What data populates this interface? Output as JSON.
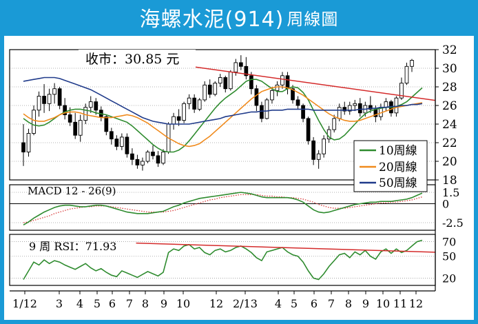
{
  "header": {
    "title_main": "海螺水泥(914)",
    "title_suffix": "周線圖",
    "bg_color": "#1a9ad6"
  },
  "chart_data": [
    {
      "type": "candlestick",
      "price_label": "收市：30.85 元",
      "last_close": 30.85,
      "ylim": [
        18,
        32
      ],
      "y_ticks": [
        18,
        20,
        22,
        24,
        26,
        28,
        30,
        32
      ],
      "x_tick_labels": [
        "1/12",
        "3",
        "4",
        "5",
        "6",
        "7",
        "8",
        "9",
        "10",
        "12",
        "2/13",
        "4",
        "5",
        "6",
        "7",
        "8",
        "9",
        "10",
        "11",
        "12"
      ],
      "grid": true,
      "legend_placement": "bottom-right",
      "candle_color": "#000000",
      "candles": [
        [
          22,
          24,
          19.5,
          21
        ],
        [
          21,
          23.5,
          20.5,
          23
        ],
        [
          23,
          26,
          22.8,
          25.5
        ],
        [
          25.5,
          27.5,
          24.8,
          27
        ],
        [
          27,
          28.3,
          25.2,
          26.2
        ],
        [
          26.2,
          27.8,
          25.4,
          27.2
        ],
        [
          27.2,
          28.4,
          26.2,
          27.8
        ],
        [
          27.8,
          28,
          25.6,
          26
        ],
        [
          26,
          26.8,
          24.5,
          25
        ],
        [
          25,
          25.8,
          23.8,
          24.2
        ],
        [
          24.2,
          25.2,
          22.4,
          22.8
        ],
        [
          22.8,
          25,
          22.1,
          24.4
        ],
        [
          24.4,
          26.2,
          24,
          25.8
        ],
        [
          25.8,
          27,
          25.2,
          26.4
        ],
        [
          26.4,
          26.8,
          25,
          25.5
        ],
        [
          25.5,
          25.9,
          24.3,
          24.8
        ],
        [
          24.8,
          25,
          22.8,
          23.2
        ],
        [
          23.2,
          23.6,
          21.8,
          22.4
        ],
        [
          22.4,
          22.8,
          21.2,
          21.6
        ],
        [
          21.6,
          23,
          21.2,
          22.6
        ],
        [
          22.6,
          23,
          20.4,
          20.8
        ],
        [
          20.8,
          21.4,
          19.6,
          20.2
        ],
        [
          20.2,
          20.7,
          19.2,
          19.6
        ],
        [
          19.6,
          20.4,
          19,
          20
        ],
        [
          20,
          21.2,
          19.8,
          21
        ],
        [
          21,
          21.7,
          20.2,
          20.6
        ],
        [
          20.6,
          21.1,
          19.4,
          19.8
        ],
        [
          19.8,
          21.3,
          19.6,
          21
        ],
        [
          21,
          24.2,
          20.8,
          24
        ],
        [
          24,
          25.2,
          23.4,
          24.8
        ],
        [
          24.8,
          25.6,
          23.8,
          24.4
        ],
        [
          24.4,
          26.4,
          24.1,
          26.2
        ],
        [
          26.2,
          27.2,
          25.6,
          26.8
        ],
        [
          26.8,
          27.2,
          25.2,
          25.6
        ],
        [
          25.6,
          26.8,
          25.4,
          26.6
        ],
        [
          26.6,
          28.6,
          26.4,
          28.2
        ],
        [
          28.2,
          28.8,
          26.8,
          27.2
        ],
        [
          27.2,
          28.6,
          27,
          28.4
        ],
        [
          28.4,
          29.4,
          28,
          29
        ],
        [
          29,
          29.2,
          27.4,
          27.8
        ],
        [
          27.8,
          29.8,
          27.6,
          29.6
        ],
        [
          29.6,
          31,
          29.2,
          30.6
        ],
        [
          30.6,
          31.4,
          29.8,
          30.2
        ],
        [
          30.2,
          31.2,
          28.8,
          29.2
        ],
        [
          29.2,
          29.6,
          27.2,
          27.8
        ],
        [
          27.8,
          28.2,
          25.4,
          26
        ],
        [
          26,
          26.4,
          24.2,
          24.6
        ],
        [
          24.6,
          26.8,
          24.5,
          26.6
        ],
        [
          26.6,
          28,
          26.2,
          27.6
        ],
        [
          27.6,
          28.6,
          27,
          28.2
        ],
        [
          28.2,
          29.6,
          27.8,
          29.2
        ],
        [
          29.2,
          29.6,
          27.2,
          27.8
        ],
        [
          27.8,
          28.2,
          26.2,
          26.6
        ],
        [
          26.6,
          27,
          25.6,
          26
        ],
        [
          26,
          26.2,
          24.2,
          24.6
        ],
        [
          24.6,
          24.8,
          21.8,
          22.2
        ],
        [
          22.2,
          22.6,
          19.6,
          20.2
        ],
        [
          20.2,
          21.2,
          19.2,
          20.8
        ],
        [
          20.8,
          22.8,
          20.4,
          22.4
        ],
        [
          22.4,
          23.8,
          22,
          23.4
        ],
        [
          23.4,
          25,
          23.1,
          24.6
        ],
        [
          24.6,
          26.2,
          24.3,
          25.8
        ],
        [
          25.8,
          26.4,
          25,
          25.4
        ],
        [
          25.4,
          26.4,
          25,
          26
        ],
        [
          26,
          26.6,
          25.4,
          26.2
        ],
        [
          26.2,
          26.8,
          24.8,
          25.2
        ],
        [
          25.2,
          26.4,
          24.8,
          26
        ],
        [
          26,
          27,
          25.2,
          25.6
        ],
        [
          25.6,
          26,
          24.2,
          24.8
        ],
        [
          24.8,
          26.2,
          24.4,
          25.8
        ],
        [
          25.8,
          26.8,
          25.4,
          26.4
        ],
        [
          26.4,
          26.6,
          24.8,
          25.2
        ],
        [
          25.2,
          27,
          24.8,
          26.8
        ],
        [
          26.8,
          29,
          26.6,
          28.4
        ],
        [
          28.4,
          30.6,
          28.2,
          30.2
        ],
        [
          30.2,
          31,
          29.6,
          30.85
        ]
      ],
      "series": [
        {
          "name": "10周線",
          "color": "#2e8b2e",
          "values": [
            24.6,
            24.2,
            23.9,
            23.8,
            23.9,
            24.2,
            24.6,
            25,
            25.3,
            25.5,
            25.6,
            25.6,
            25.5,
            25.4,
            25.2,
            25.1,
            25,
            24.8,
            24.6,
            24.4,
            24.2,
            23.8,
            23.3,
            22.8,
            22.3,
            21.8,
            21.4,
            21.1,
            21,
            21,
            21.2,
            21.6,
            22.2,
            22.9,
            23.6,
            24.3,
            25,
            25.7,
            26.3,
            26.8,
            27.2,
            27.6,
            28.1,
            28.6,
            28.8,
            28.8,
            28.6,
            28.2,
            27.8,
            27.5,
            27.5,
            27.8,
            28,
            27.9,
            27.4,
            26.6,
            25.5,
            24.4,
            23.4,
            22.6,
            22.3,
            22.4,
            22.8,
            23.4,
            24,
            24.6,
            25.1,
            25.4,
            25.6,
            25.7,
            25.8,
            25.8,
            25.9,
            26.1,
            26.4,
            26.9,
            27.4,
            27.9
          ]
        },
        {
          "name": "20周線",
          "color": "#f08a1c",
          "values": [
            25.1,
            24.7,
            24.4,
            24.3,
            24.3,
            24.5,
            24.7,
            25,
            25.2,
            25.3,
            25.3,
            25.2,
            25,
            24.9,
            24.8,
            24.7,
            24.7,
            24.7,
            24.8,
            24.9,
            25,
            24.9,
            24.7,
            24.4,
            24.1,
            23.7,
            23.3,
            22.9,
            22.5,
            22.2,
            21.9,
            21.7,
            21.6,
            21.7,
            21.9,
            22.3,
            22.7,
            23.2,
            23.7,
            24.2,
            24.7,
            25.2,
            25.7,
            26.2,
            26.7,
            27.1,
            27.5,
            27.7,
            27.9,
            28,
            28,
            27.9,
            27.7,
            27.4,
            27.1,
            26.7,
            26.3,
            25.9,
            25.5,
            25.1,
            24.8,
            24.6,
            24.4,
            24.3,
            24.3,
            24.4,
            24.6,
            24.8,
            25,
            25.2,
            25.4,
            25.6,
            25.8,
            25.9,
            26,
            26.1,
            26.2,
            26.3
          ]
        },
        {
          "name": "50周線",
          "color": "#1f3a8a",
          "values": [
            28.6,
            28.7,
            28.8,
            28.9,
            29,
            29,
            29,
            28.9,
            28.7,
            28.5,
            28.3,
            28.1,
            27.9,
            27.7,
            27.4,
            27.1,
            26.8,
            26.5,
            26.2,
            25.9,
            25.6,
            25.3,
            25,
            24.7,
            24.5,
            24.3,
            24.2,
            24.1,
            24,
            24,
            24,
            24,
            24,
            24.1,
            24.2,
            24.3,
            24.4,
            24.5,
            24.6,
            24.8,
            24.9,
            25,
            25.1,
            25.2,
            25.3,
            25.3,
            25.4,
            25.4,
            25.5,
            25.5,
            25.5,
            25.6,
            25.6,
            25.6,
            25.6,
            25.6,
            25.5,
            25.5,
            25.5,
            25.5,
            25.5,
            25.5,
            25.5,
            25.5,
            25.5,
            25.6,
            25.6,
            25.7,
            25.7,
            25.8,
            25.8,
            25.9,
            25.9,
            26,
            26,
            26.1,
            26.1,
            26.2
          ]
        }
      ],
      "trendline": {
        "color": "#d42a2a",
        "x": [
          43,
          100
        ],
        "y": [
          30.2,
          26.9
        ]
      }
    },
    {
      "type": "line",
      "label": "MACD 12 - 26(9)",
      "ylim": [
        -3.5,
        2.5
      ],
      "y_ticks": [
        1.5,
        0,
        -2.5
      ],
      "zero_line": true,
      "series": [
        {
          "color": "#2e8b2e",
          "values": [
            -2.8,
            -2.4,
            -1.9,
            -1.5,
            -1.1,
            -0.8,
            -0.5,
            -0.3,
            -0.2,
            -0.2,
            -0.3,
            -0.4,
            -0.4,
            -0.3,
            -0.2,
            -0.2,
            -0.3,
            -0.5,
            -0.7,
            -0.9,
            -1.1,
            -1.2,
            -1.3,
            -1.3,
            -1.3,
            -1.2,
            -1.1,
            -1,
            -0.7,
            -0.4,
            -0.2,
            0.1,
            0.3,
            0.5,
            0.7,
            0.8,
            0.9,
            1,
            1.1,
            1.2,
            1.3,
            1.4,
            1.5,
            1.4,
            1.3,
            1.1,
            0.9,
            0.8,
            0.8,
            0.8,
            0.8,
            0.8,
            0.7,
            0.5,
            0.2,
            -0.3,
            -0.8,
            -1.1,
            -1.2,
            -1.1,
            -0.9,
            -0.7,
            -0.5,
            -0.3,
            -0.1,
            0,
            0.1,
            0.2,
            0.2,
            0.3,
            0.3,
            0.3,
            0.4,
            0.5,
            0.6,
            0.8,
            1.1,
            1.4
          ]
        },
        {
          "color": "#d42a2a",
          "style": "dotted",
          "values": [
            -2.5,
            -2.4,
            -2.2,
            -2,
            -1.8,
            -1.6,
            -1.3,
            -1.1,
            -0.9,
            -0.7,
            -0.6,
            -0.5,
            -0.4,
            -0.4,
            -0.3,
            -0.3,
            -0.3,
            -0.4,
            -0.5,
            -0.6,
            -0.7,
            -0.8,
            -0.9,
            -1,
            -1.1,
            -1.1,
            -1.1,
            -1.1,
            -1,
            -0.9,
            -0.7,
            -0.5,
            -0.3,
            -0.1,
            0.1,
            0.3,
            0.5,
            0.6,
            0.8,
            0.9,
            1,
            1.1,
            1.2,
            1.2,
            1.2,
            1.2,
            1.1,
            1,
            1,
            0.9,
            0.9,
            0.8,
            0.8,
            0.7,
            0.6,
            0.4,
            0.2,
            -0.1,
            -0.3,
            -0.5,
            -0.6,
            -0.6,
            -0.6,
            -0.5,
            -0.4,
            -0.3,
            -0.2,
            -0.1,
            0,
            0.1,
            0.1,
            0.2,
            0.2,
            0.3,
            0.4,
            0.5,
            0.7,
            0.9
          ]
        }
      ]
    },
    {
      "type": "line",
      "label": "9 周 RSI：71.93",
      "last_value": 71.93,
      "ylim": [
        10,
        80
      ],
      "y_ticks": [
        70,
        50,
        20
      ],
      "series": [
        {
          "color": "#2e8b2e",
          "values": [
            18,
            30,
            42,
            38,
            45,
            40,
            44,
            42,
            38,
            35,
            32,
            36,
            40,
            34,
            30,
            33,
            28,
            24,
            22,
            30,
            27,
            24,
            21,
            25,
            29,
            26,
            23,
            28,
            55,
            60,
            58,
            64,
            66,
            60,
            62,
            55,
            52,
            58,
            60,
            56,
            58,
            62,
            64,
            60,
            55,
            48,
            44,
            56,
            58,
            60,
            62,
            56,
            52,
            50,
            42,
            30,
            20,
            18,
            26,
            36,
            44,
            52,
            54,
            48,
            56,
            52,
            58,
            50,
            46,
            56,
            60,
            54,
            60,
            55,
            58,
            64,
            70,
            72
          ]
        },
        {
          "color": "#d42a2a",
          "trend": true,
          "x": [
            29,
            100
          ],
          "y": [
            68,
            57
          ]
        }
      ]
    }
  ]
}
